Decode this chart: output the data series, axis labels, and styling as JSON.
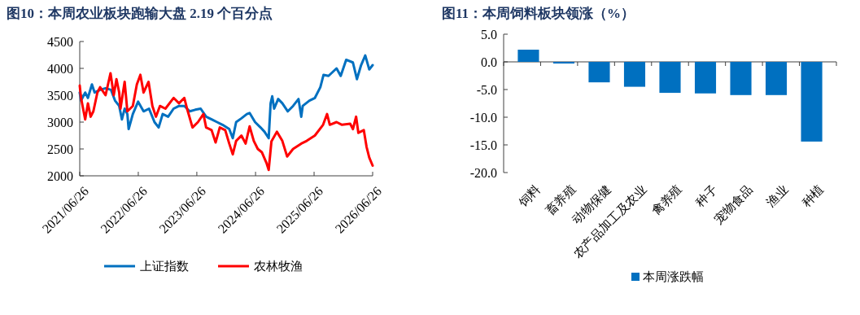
{
  "chart_data": [
    {
      "type": "line",
      "title": "图10：本周农业板块跑输大盘 2.19 个百分点",
      "legend": "bottom",
      "xlim": [
        "2021-06-26",
        "2026-06-26"
      ],
      "xticks": [
        {
          "value": "2021-06-26",
          "label": "2021/06/26"
        },
        {
          "value": "2022-06-26",
          "label": "2022/06/26"
        },
        {
          "value": "2023-06-26",
          "label": "2023/06/26"
        },
        {
          "value": "2024-06-26",
          "label": "2024/06/26"
        },
        {
          "value": "2025-06-26",
          "label": "2025/06/26"
        },
        {
          "value": "2026-06-26",
          "label": "2026/06/26"
        }
      ],
      "ylim": [
        2000,
        4500
      ],
      "yticks": [
        2000,
        2500,
        3000,
        3500,
        4000,
        4500
      ],
      "series": [
        {
          "name": "上证指数",
          "color": "#0070c0",
          "x": [
            "2021-06-26",
            "2021-07-04",
            "2021-07-30",
            "2021-08-16",
            "2021-09-10",
            "2021-09-27",
            "2021-10-31",
            "2021-12-04",
            "2022-01-07",
            "2022-02-01",
            "2022-02-27",
            "2022-03-16",
            "2022-04-02",
            "2022-04-19",
            "2022-04-27",
            "2022-05-23",
            "2022-06-25",
            "2022-07-29",
            "2022-09-01",
            "2022-10-05",
            "2022-10-31",
            "2022-11-25",
            "2022-12-29",
            "2023-02-01",
            "2023-03-07",
            "2023-04-09",
            "2023-05-13",
            "2023-06-16",
            "2023-07-20",
            "2023-08-23",
            "2023-09-26",
            "2023-10-30",
            "2023-12-03",
            "2024-01-14",
            "2024-02-05",
            "2024-02-26",
            "2024-03-30",
            "2024-05-03",
            "2024-05-20",
            "2024-06-23",
            "2024-07-27",
            "2024-08-21",
            "2024-09-16",
            "2024-09-28",
            "2024-10-08",
            "2024-10-20",
            "2024-11-14",
            "2024-12-10",
            "2025-01-13",
            "2025-02-15",
            "2025-03-21",
            "2025-04-07",
            "2025-04-16",
            "2025-05-28",
            "2025-07-01",
            "2025-08-04",
            "2025-08-24",
            "2025-09-24",
            "2025-11-13",
            "2025-12-09",
            "2026-01-12",
            "2026-02-23",
            "2026-03-20",
            "2026-04-15",
            "2026-05-11",
            "2026-06-05",
            "2026-06-26"
          ],
          "values": [
            3550,
            3400,
            3550,
            3450,
            3700,
            3550,
            3600,
            3630,
            3600,
            3400,
            3300,
            3050,
            3250,
            3150,
            2870,
            3150,
            3380,
            3200,
            3250,
            3000,
            2900,
            3150,
            3100,
            3250,
            3300,
            3300,
            3200,
            3230,
            3250,
            3100,
            3050,
            3000,
            2950,
            2870,
            2700,
            3000,
            3070,
            3150,
            3170,
            3000,
            2900,
            2820,
            2700,
            3350,
            3480,
            3250,
            3430,
            3350,
            3200,
            3300,
            3430,
            3100,
            3300,
            3400,
            3450,
            3650,
            3880,
            3860,
            4000,
            3860,
            4160,
            4110,
            3800,
            4060,
            4240,
            3980,
            4060
          ]
        },
        {
          "name": "农林牧渔",
          "color": "#ff0000",
          "x": [
            "2021-06-26",
            "2021-07-04",
            "2021-07-30",
            "2021-08-16",
            "2021-09-02",
            "2021-09-19",
            "2021-10-14",
            "2021-10-31",
            "2021-12-04",
            "2022-01-04",
            "2022-01-24",
            "2022-02-10",
            "2022-02-27",
            "2022-03-07",
            "2022-04-02",
            "2022-04-19",
            "2022-05-23",
            "2022-06-17",
            "2022-07-09",
            "2022-07-29",
            "2022-08-29",
            "2022-09-22",
            "2022-10-14",
            "2022-11-08",
            "2022-12-12",
            "2023-02-01",
            "2023-03-07",
            "2023-04-09",
            "2023-04-26",
            "2023-05-30",
            "2023-07-03",
            "2023-08-06",
            "2023-08-23",
            "2023-09-26",
            "2023-10-21",
            "2023-11-16",
            "2023-12-20",
            "2024-01-14",
            "2024-02-05",
            "2024-02-26",
            "2024-03-30",
            "2024-04-25",
            "2024-05-20",
            "2024-06-15",
            "2024-07-10",
            "2024-08-04",
            "2024-09-02",
            "2024-09-16",
            "2024-10-03",
            "2024-11-06",
            "2024-12-10",
            "2025-01-09",
            "2025-02-15",
            "2025-04-07",
            "2025-05-11",
            "2025-07-01",
            "2025-08-21",
            "2025-09-15",
            "2025-10-02",
            "2025-11-13",
            "2025-12-17",
            "2026-02-06",
            "2026-02-23",
            "2026-03-15",
            "2026-03-29",
            "2026-05-02",
            "2026-05-19",
            "2026-06-05",
            "2026-06-26"
          ],
          "values": [
            3680,
            3450,
            3050,
            3350,
            3100,
            3200,
            3550,
            3650,
            3500,
            3910,
            3500,
            3800,
            3550,
            3250,
            3750,
            3200,
            3300,
            3700,
            3880,
            3550,
            3750,
            3300,
            3100,
            3300,
            3250,
            3450,
            3350,
            3450,
            3250,
            2900,
            3000,
            3150,
            2900,
            2850,
            2620,
            2900,
            2850,
            2600,
            2400,
            2650,
            2750,
            2600,
            2920,
            2650,
            2500,
            2440,
            2240,
            2110,
            2640,
            2820,
            2650,
            2360,
            2500,
            2600,
            2650,
            2750,
            2950,
            3150,
            2950,
            3000,
            2950,
            2970,
            2870,
            3100,
            2800,
            2850,
            2540,
            2340,
            2190
          ]
        }
      ]
    },
    {
      "type": "bar",
      "title": "图11：本周饲料板块领涨（%）",
      "legend": "bottom",
      "categories": [
        "饲料",
        "畜养殖",
        "动物保健",
        "农产品加工及农业",
        "禽养殖",
        "种子",
        "宠物食品",
        "渔业",
        "种植"
      ],
      "ylim": [
        -20,
        5
      ],
      "yticks": [
        {
          "value": -20,
          "label": "-20.0"
        },
        {
          "value": -15,
          "label": "-15.0"
        },
        {
          "value": -10,
          "label": "-10.0"
        },
        {
          "value": -5,
          "label": "-5.0"
        },
        {
          "value": 0,
          "label": "0.0"
        },
        {
          "value": 5,
          "label": "5.0"
        }
      ],
      "series": [
        {
          "name": "本周涨跌幅",
          "color": "#0070c0",
          "values": [
            2.2,
            -0.3,
            -3.7,
            -4.5,
            -5.6,
            -5.7,
            -6.0,
            -6.0,
            -14.4
          ]
        }
      ]
    }
  ]
}
